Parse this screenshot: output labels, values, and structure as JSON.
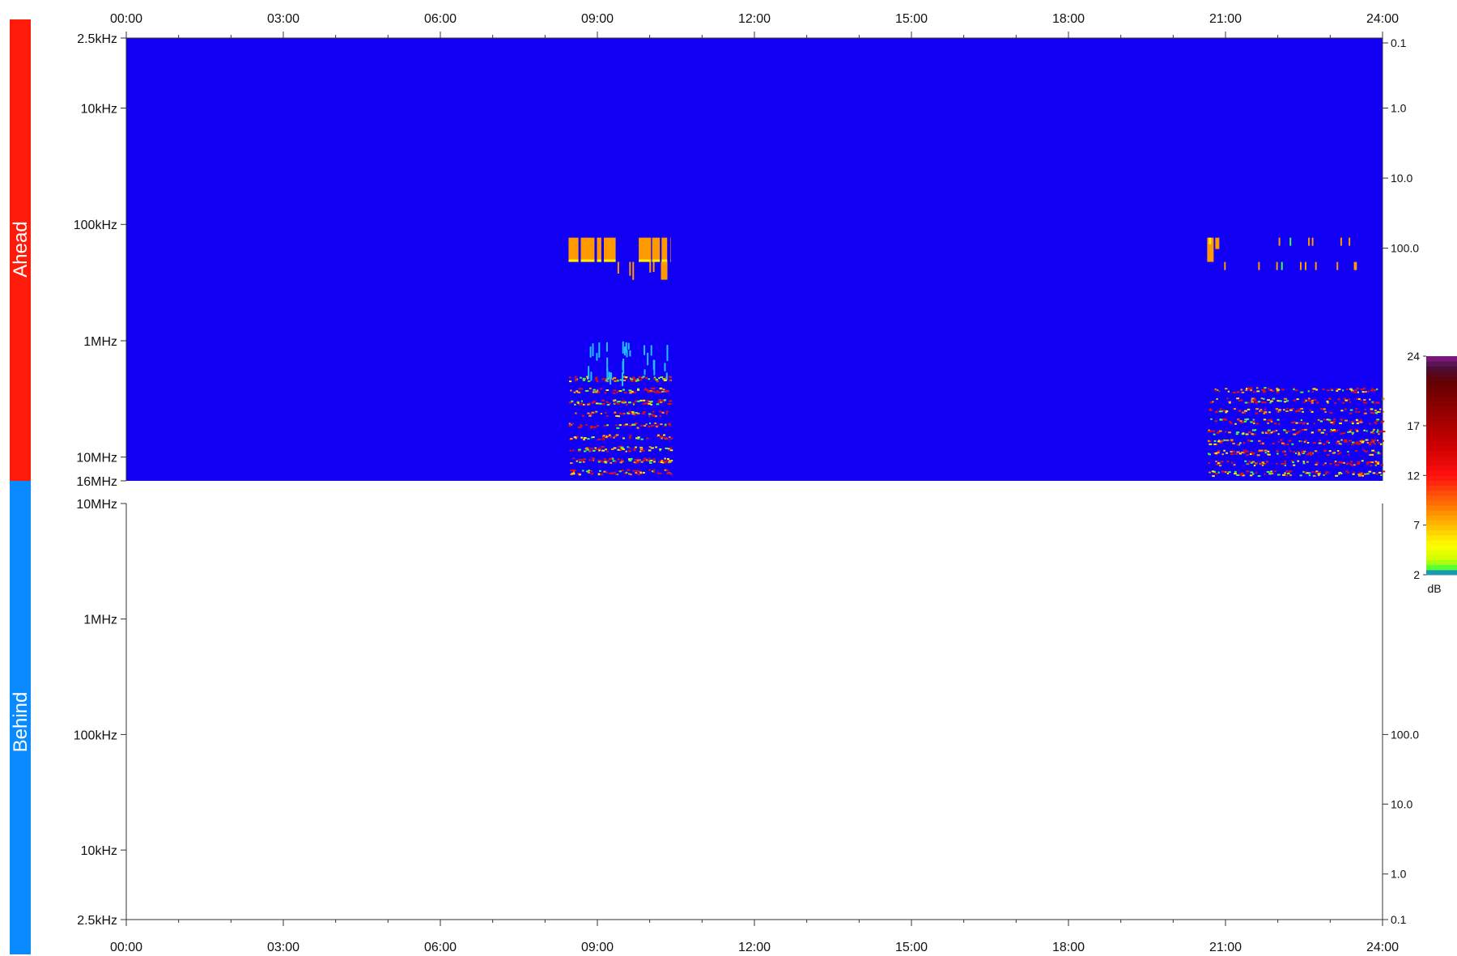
{
  "colors": {
    "ahead_band": "#ff1a0a",
    "behind_band": "#0a8aff",
    "spectrogram_bg": "#1200f5",
    "signal_orange": "#ff9900",
    "signal_yellow": "#ffee00",
    "signal_red": "#e01010",
    "signal_green": "#40ff40",
    "signal_cyan": "#20c0ff",
    "axis": "#333333"
  },
  "chart_data": {
    "type": "heatmap",
    "panels": [
      {
        "name": "Ahead",
        "time_ticks": [
          "00:00",
          "03:00",
          "06:00",
          "09:00",
          "12:00",
          "15:00",
          "18:00",
          "21:00",
          "24:00"
        ],
        "freq_tick_labels": [
          "2.5kHz",
          "10kHz",
          "100kHz",
          "1MHz",
          "10MHz",
          "16MHz"
        ],
        "freq_tick_values_hz": [
          2500,
          10000,
          100000,
          1000000,
          10000000,
          16000000
        ],
        "right_tick_labels": [
          "0.1",
          "1.0",
          "10.0",
          "100.0"
        ],
        "right_tick_freq_hz": [
          2500,
          10000,
          40000,
          160000
        ],
        "ylim_hz": [
          2500,
          16000000
        ],
        "background_level": "none",
        "activity_windows_hours": [
          [
            8.45,
            10.4
          ],
          [
            20.65,
            24.0
          ]
        ],
        "bursts": [
          {
            "t_start": 8.45,
            "t_end": 10.4,
            "f_low_hz": 210000,
            "f_high_hz": 130000,
            "level": "orange"
          },
          {
            "t_start": 20.65,
            "t_end": 23.6,
            "f_low_hz": 210000,
            "f_high_hz": 130000,
            "level": "orange-sparse"
          },
          {
            "t_start": 8.45,
            "t_end": 10.4,
            "f_low_hz": 1000000,
            "f_high_hz": 16000000,
            "level": "scattered"
          },
          {
            "t_start": 20.65,
            "t_end": 24.0,
            "f_low_hz": 2500000,
            "f_high_hz": 16000000,
            "level": "scattered"
          }
        ]
      },
      {
        "name": "Behind",
        "time_ticks": [
          "00:00",
          "03:00",
          "06:00",
          "09:00",
          "12:00",
          "15:00",
          "18:00",
          "21:00",
          "24:00"
        ],
        "freq_tick_labels": [
          "10MHz",
          "1MHz",
          "100kHz",
          "10kHz",
          "2.5kHz"
        ],
        "freq_tick_values_hz": [
          10000000,
          1000000,
          100000,
          10000,
          2500
        ],
        "right_tick_labels": [
          "100.0",
          "10.0",
          "1.0",
          "0.1"
        ],
        "right_tick_freq_hz": [
          100000,
          25000,
          6200,
          2500
        ],
        "ylim_hz": [
          2500,
          10000000
        ],
        "data": "empty"
      }
    ],
    "colorbar": {
      "tick_labels": [
        "24",
        "17",
        "12",
        "7",
        "2"
      ],
      "tick_values": [
        24,
        17,
        12,
        7,
        2
      ],
      "range": [
        2,
        24
      ],
      "unit": "dB"
    },
    "x_range_hours": [
      0,
      24
    ]
  }
}
